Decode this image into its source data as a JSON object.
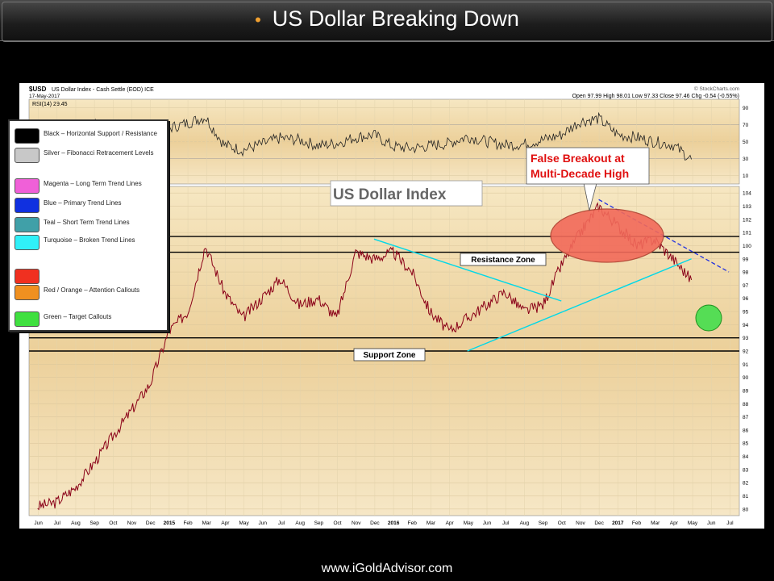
{
  "slide": {
    "title": "US Dollar Breaking Down",
    "footer": "www.iGoldAdvisor.com"
  },
  "chart_data": {
    "type": "line",
    "symbol": "$USD",
    "header_left": "US Dollar Index - Cash Settle (EOD)",
    "exchange": "ICE",
    "date": "17-May-2017",
    "source": "© StockCharts.com",
    "quote": {
      "open": "97.99",
      "high": "98.01",
      "low": "97.33",
      "close": "97.46",
      "chg": "-0.54 (-0.55%)"
    },
    "quote_labels": {
      "open": "Open",
      "high": "High",
      "low": "Low",
      "close": "Close",
      "chg": "Chg"
    },
    "rsi": {
      "label": "RSI(14) 29.45",
      "ylim": [
        0,
        100
      ],
      "ticks": [
        10,
        30,
        50,
        70,
        90
      ],
      "x": [
        "2014-06",
        "2014-07",
        "2014-08",
        "2014-09",
        "2014-10",
        "2014-11",
        "2014-12",
        "2015-01",
        "2015-02",
        "2015-03",
        "2015-04",
        "2015-05",
        "2015-06",
        "2015-07",
        "2015-08",
        "2015-09",
        "2015-10",
        "2015-11",
        "2015-12",
        "2016-01",
        "2016-02",
        "2016-03",
        "2016-04",
        "2016-05",
        "2016-06",
        "2016-07",
        "2016-08",
        "2016-09",
        "2016-10",
        "2016-11",
        "2016-12",
        "2017-01",
        "2017-02",
        "2017-03",
        "2017-04",
        "2017-05"
      ],
      "values": [
        52,
        57,
        63,
        71,
        68,
        70,
        63,
        66,
        72,
        79,
        46,
        40,
        47,
        54,
        52,
        45,
        48,
        55,
        58,
        44,
        42,
        45,
        48,
        56,
        50,
        46,
        47,
        52,
        58,
        74,
        77,
        58,
        55,
        50,
        46,
        29
      ]
    },
    "price": {
      "ylim": [
        79.5,
        104.5
      ],
      "ticks": [
        80,
        81,
        82,
        83,
        84,
        85,
        86,
        87,
        88,
        89,
        90,
        91,
        92,
        93,
        94,
        95,
        96,
        97,
        98,
        99,
        100,
        101,
        102,
        103,
        104
      ],
      "x": [
        "2014-06",
        "2014-07",
        "2014-08",
        "2014-09",
        "2014-10",
        "2014-11",
        "2014-12",
        "2015-01",
        "2015-02",
        "2015-03",
        "2015-04",
        "2015-05",
        "2015-06",
        "2015-07",
        "2015-08",
        "2015-09",
        "2015-10",
        "2015-11",
        "2015-12",
        "2016-01",
        "2016-02",
        "2016-03",
        "2016-04",
        "2016-05",
        "2016-06",
        "2016-07",
        "2016-08",
        "2016-09",
        "2016-10",
        "2016-11",
        "2016-12",
        "2017-01",
        "2017-02",
        "2017-03",
        "2017-04",
        "2017-05"
      ],
      "values": [
        80.2,
        80.5,
        81.6,
        83.5,
        85.5,
        87.5,
        89.5,
        93.5,
        95.0,
        100.0,
        96.5,
        94.5,
        96.0,
        97.5,
        95.5,
        96.0,
        94.5,
        99.5,
        99.0,
        99.5,
        98.0,
        95.0,
        93.5,
        94.5,
        95.5,
        96.5,
        95.0,
        95.5,
        98.5,
        101.0,
        103.0,
        101.5,
        100.0,
        100.5,
        99.0,
        97.4
      ]
    },
    "x_tick_labels": [
      "Jun",
      "Jul",
      "Aug",
      "Sep",
      "Oct",
      "Nov",
      "Dec",
      "2015",
      "Feb",
      "Mar",
      "Apr",
      "May",
      "Jun",
      "Jul",
      "Aug",
      "Sep",
      "Oct",
      "Nov",
      "Dec",
      "2016",
      "Feb",
      "Mar",
      "Apr",
      "May",
      "Jun",
      "Jul",
      "Aug",
      "Sep",
      "Oct",
      "Nov",
      "Dec",
      "2017",
      "Feb",
      "Mar",
      "Apr",
      "May",
      "Jun",
      "Jul"
    ],
    "horizontal_lines": [
      92,
      93,
      99.5,
      100.7
    ],
    "trend_lines": [
      {
        "color": "#00d8e8",
        "from": [
          "2016-05",
          92
        ],
        "to": [
          "2017-05",
          99
        ]
      },
      {
        "color": "#00d8e8",
        "from": [
          "2015-12",
          100.5
        ],
        "to": [
          "2016-10",
          95.8
        ]
      },
      {
        "color": "#2030e0",
        "dashed": true,
        "from": [
          "2016-12",
          103.5
        ],
        "to": [
          "2017-07",
          98
        ]
      }
    ],
    "annotations": {
      "chart_title": "US Dollar Index",
      "resistance": "Resistance Zone",
      "support": "Support Zone",
      "callout": [
        "False Breakout at",
        "Multi-Decade High"
      ]
    },
    "legend": [
      {
        "color": "#000000",
        "label": "Black – Horizontal Support / Resistance"
      },
      {
        "color": "#c8c8c8",
        "label": "Silver – Fibonacci Retracement Levels"
      },
      {
        "color": "#f060d8",
        "label": "Magenta – Long Term Trend Lines"
      },
      {
        "color": "#1030e0",
        "label": "Blue – Primary Trend Lines"
      },
      {
        "color": "#40a0a8",
        "label": "Teal – Short Term Trend Lines"
      },
      {
        "color": "#30f0f8",
        "label": "Turquoise – Broken Trend Lines"
      },
      {
        "color": "#f03020",
        "label": ""
      },
      {
        "color": "#f09020",
        "label": "Red / Orange – Attention Callouts"
      },
      {
        "color": "#40e040",
        "label": "Green – Target Callouts"
      }
    ],
    "colors": {
      "price": "#8a0018",
      "rsi": "#222222",
      "callout_fill": "#f26a5a",
      "target_fill": "#55dd55"
    }
  }
}
